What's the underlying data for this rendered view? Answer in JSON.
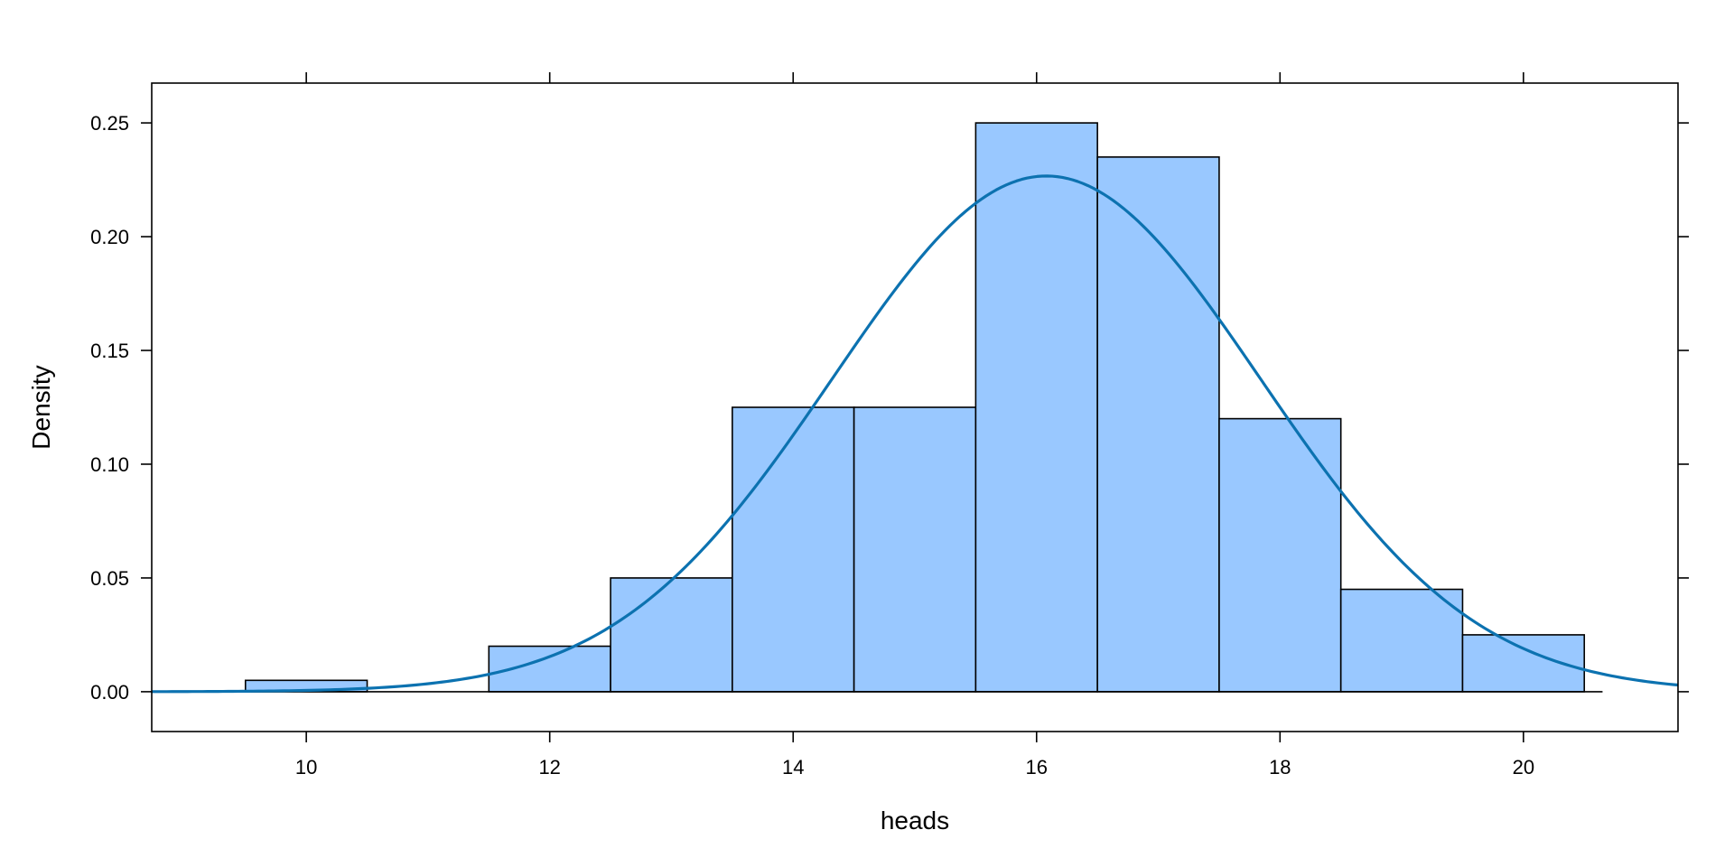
{
  "chart_data": {
    "type": "bar",
    "subtype": "histogram with density curve",
    "xlabel": "heads",
    "ylabel": "Density",
    "xlim": [
      8.73,
      21.27
    ],
    "ylim": [
      -0.0175,
      0.2675
    ],
    "x_ticks": [
      10,
      12,
      14,
      16,
      18,
      20
    ],
    "x_tick_labels": [
      "10",
      "12",
      "14",
      "16",
      "18",
      "20"
    ],
    "y_ticks": [
      0.0,
      0.05,
      0.1,
      0.15,
      0.2,
      0.25
    ],
    "y_tick_labels": [
      "0.00",
      "0.05",
      "0.10",
      "0.15",
      "0.20",
      "0.25"
    ],
    "ticks_mirrored": true,
    "grid": false,
    "bins": [
      {
        "x0": 9.5,
        "x1": 10.5,
        "density": 0.005
      },
      {
        "x0": 10.5,
        "x1": 11.5,
        "density": 0.0
      },
      {
        "x0": 11.5,
        "x1": 12.5,
        "density": 0.02
      },
      {
        "x0": 12.5,
        "x1": 13.5,
        "density": 0.05
      },
      {
        "x0": 13.5,
        "x1": 14.5,
        "density": 0.125
      },
      {
        "x0": 14.5,
        "x1": 15.5,
        "density": 0.125
      },
      {
        "x0": 15.5,
        "x1": 16.5,
        "density": 0.25
      },
      {
        "x0": 16.5,
        "x1": 17.5,
        "density": 0.235
      },
      {
        "x0": 17.5,
        "x1": 18.5,
        "density": 0.12
      },
      {
        "x0": 18.5,
        "x1": 19.5,
        "density": 0.045
      },
      {
        "x0": 19.5,
        "x1": 20.5,
        "density": 0.025
      }
    ],
    "baseline": {
      "x0": 8.73,
      "x1": 20.65,
      "y": 0
    },
    "density_curve": {
      "kind": "normal",
      "mean": 16.08,
      "sd": 1.76,
      "x_range": [
        8.73,
        21.27
      ]
    },
    "colors": {
      "bar_fill": "#99c8ff",
      "bar_stroke": "#000000",
      "curve": "#0c72b0",
      "axis": "#000000"
    }
  }
}
